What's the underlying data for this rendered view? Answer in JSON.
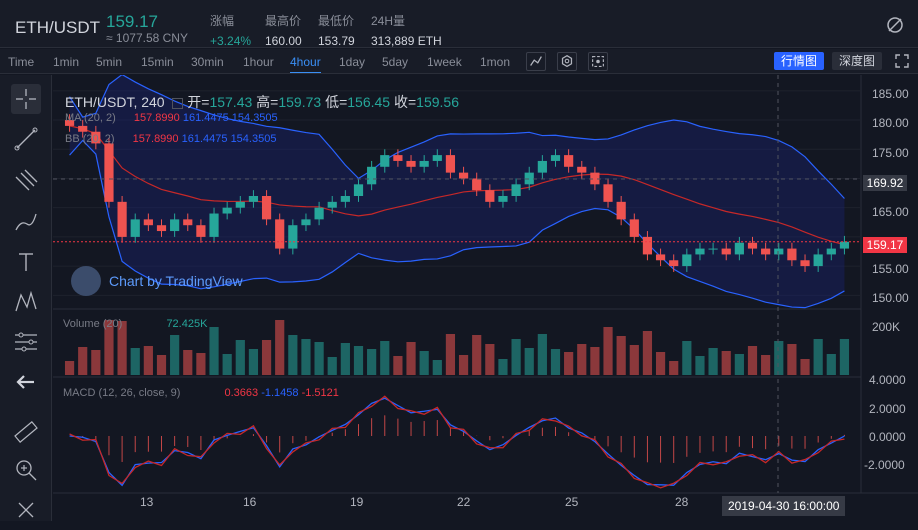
{
  "header": {
    "pair": "ETH/USDT",
    "price": "159.17",
    "cny": "≈ 1077.58 CNY",
    "stats": [
      {
        "label": "涨幅",
        "value": "+3.24%",
        "up": true
      },
      {
        "label": "最高价",
        "value": "160.00"
      },
      {
        "label": "最低价",
        "value": "153.79"
      },
      {
        "label": "24H量",
        "value": "313,889 ETH"
      }
    ]
  },
  "toolbar": {
    "timeframes": [
      "Time",
      "1min",
      "5min",
      "15min",
      "30min",
      "1hour",
      "4hour",
      "1day",
      "5day",
      "1week",
      "1mon"
    ],
    "active": "4hour",
    "view_buttons": [
      "行情图",
      "深度图"
    ]
  },
  "legend": {
    "symbol": "ETH/USDT",
    "interval": "240",
    "open_label": "开=",
    "open": "157.43",
    "high_label": "高=",
    "high": "159.73",
    "low_label": "低=",
    "low": "156.45",
    "close_label": "收=",
    "close": "159.56"
  },
  "indicators": {
    "ma": {
      "name": "MA (20, 2)",
      "v1": "157.8990",
      "v2": "161.4475",
      "v3": "154.3505"
    },
    "bb": {
      "name": "BB (20, 2)",
      "v1": "157.8990",
      "v2": "161.4475",
      "v3": "154.3505"
    },
    "volume": {
      "name": "Volume (20)",
      "value": "72.425K"
    },
    "macd": {
      "name": "MACD (12, 26, close, 9)",
      "v1": "0.3663",
      "v2": "-1.1458",
      "v3": "-1.5121"
    }
  },
  "watermark": "Chart by TradingView",
  "price_axis": [
    "185.00",
    "180.00",
    "175.00",
    "170.00",
    "165.00",
    "160.00",
    "155.00",
    "150.00"
  ],
  "crosshair_price": "169.92",
  "last_price": "159.17",
  "volume_axis": [
    "200K"
  ],
  "macd_axis": [
    "4.0000",
    "2.0000",
    "0.0000",
    "-2.0000"
  ],
  "time_axis": [
    "13",
    "16",
    "19",
    "22",
    "25",
    "28"
  ],
  "crosshair_time": "2019-04-30 16:00:00",
  "colors": {
    "up": "#26a69a",
    "down": "#ef5350",
    "accent": "#2962ff",
    "band": "#1a237e"
  },
  "chart_data": {
    "type": "candlestick",
    "closes": [
      179,
      178,
      176,
      166,
      160,
      163,
      162,
      161,
      163,
      162,
      160,
      164,
      165,
      166,
      167,
      163,
      158,
      162,
      163,
      165,
      166,
      167,
      169,
      172,
      174,
      173,
      172,
      173,
      174,
      171,
      170,
      168,
      166,
      167,
      169,
      171,
      173,
      174,
      172,
      171,
      169,
      166,
      163,
      160,
      157,
      156,
      155,
      157,
      158,
      158,
      157,
      159,
      158,
      157,
      158,
      156,
      155,
      157,
      158,
      159.17
    ],
    "ylim": [
      148,
      186
    ]
  }
}
